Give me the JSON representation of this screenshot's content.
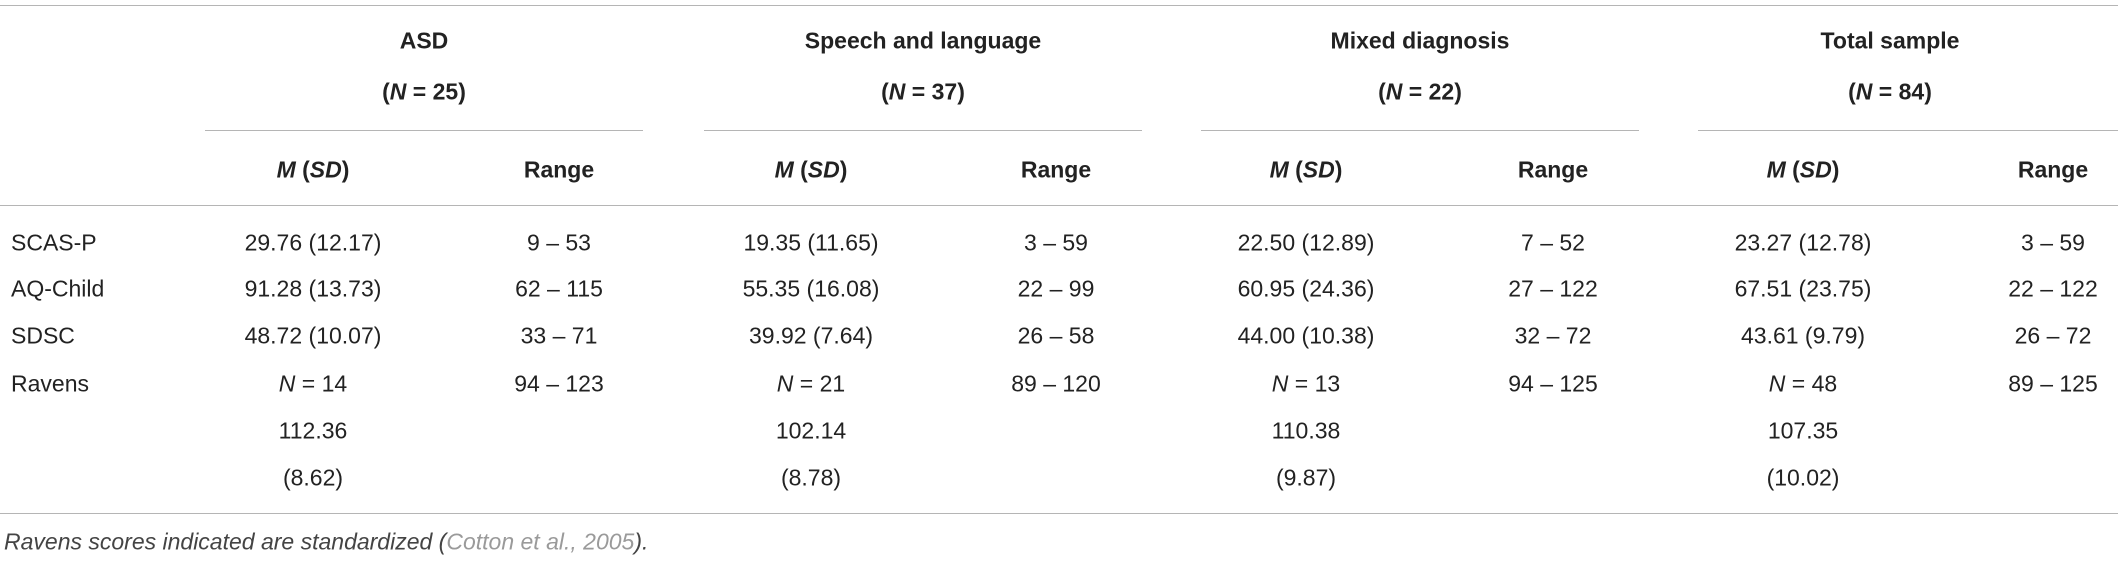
{
  "table": {
    "groups": [
      {
        "title": "ASD",
        "sub": [
          {
            "text": "("
          },
          {
            "text": "N",
            "italic": true
          },
          {
            "text": " = 25)"
          }
        ]
      },
      {
        "title": "Speech and language",
        "sub": [
          {
            "text": "("
          },
          {
            "text": "N",
            "italic": true
          },
          {
            "text": " = 37)"
          }
        ]
      },
      {
        "title": "Mixed diagnosis",
        "sub": [
          {
            "text": "("
          },
          {
            "text": "N",
            "italic": true
          },
          {
            "text": " = 22)"
          }
        ]
      },
      {
        "title": "Total sample",
        "sub": [
          {
            "text": "("
          },
          {
            "text": "N",
            "italic": true
          },
          {
            "text": " = 84)"
          }
        ]
      }
    ],
    "column_headers": [
      [
        {
          "text": "M",
          "italic": true
        },
        {
          "text": " ("
        },
        {
          "text": "SD",
          "italic": true
        },
        {
          "text": ")"
        }
      ],
      [
        {
          "text": "Range"
        }
      ],
      [
        {
          "text": "M",
          "italic": true
        },
        {
          "text": " ("
        },
        {
          "text": "SD",
          "italic": true
        },
        {
          "text": ")"
        }
      ],
      [
        {
          "text": "Range"
        }
      ],
      [
        {
          "text": "M",
          "italic": true
        },
        {
          "text": " ("
        },
        {
          "text": "SD",
          "italic": true
        },
        {
          "text": ")"
        }
      ],
      [
        {
          "text": "Range"
        }
      ],
      [
        {
          "text": "M",
          "italic": true
        },
        {
          "text": " ("
        },
        {
          "text": "SD",
          "italic": true
        },
        {
          "text": ")"
        }
      ],
      [
        {
          "text": "Range"
        }
      ]
    ],
    "rows": [
      {
        "label": "SCAS-P",
        "cells": [
          "29.76 (12.17)",
          "9 – 53",
          "19.35 (11.65)",
          "3 – 59",
          "22.50 (12.89)",
          "7 – 52",
          "23.27 (12.78)",
          "3 – 59"
        ]
      },
      {
        "label": "AQ-Child",
        "cells": [
          "91.28 (13.73)",
          "62 – 115",
          "55.35 (16.08)",
          "22 – 99",
          "60.95 (24.36)",
          "27 – 122",
          "67.51 (23.75)",
          "22 – 122"
        ]
      },
      {
        "label": "SDSC",
        "cells": [
          "48.72 (10.07)",
          "33 – 71",
          "39.92 (7.64)",
          "26 – 58",
          "44.00 (10.38)",
          "32 – 72",
          "43.61 (9.79)",
          "26 – 72"
        ]
      },
      {
        "label": "Ravens",
        "cells": [
          {
            "lines": [
              [
                {
                  "text": "N",
                  "italic": true
                },
                {
                  "text": " = 14"
                }
              ],
              "112.36",
              "(8.62)"
            ]
          },
          "94 – 123",
          {
            "lines": [
              [
                {
                  "text": "N",
                  "italic": true
                },
                {
                  "text": " = 21"
                }
              ],
              "102.14",
              "(8.78)"
            ]
          },
          "89 – 120",
          {
            "lines": [
              [
                {
                  "text": "N",
                  "italic": true
                },
                {
                  "text": " = 13"
                }
              ],
              "110.38",
              "(9.87)"
            ]
          },
          "94 – 125",
          {
            "lines": [
              [
                {
                  "text": "N",
                  "italic": true
                },
                {
                  "text": " = 48"
                }
              ],
              "107.35",
              "(10.02)"
            ]
          },
          "89 – 125"
        ]
      }
    ],
    "footnote": [
      {
        "text": "Ravens scores indicated are standardized (",
        "italic": true
      },
      {
        "text": "Cotton et al., 2005",
        "italic": true,
        "color": "#9a9a9a"
      },
      {
        "text": ").",
        "italic": true
      }
    ]
  }
}
